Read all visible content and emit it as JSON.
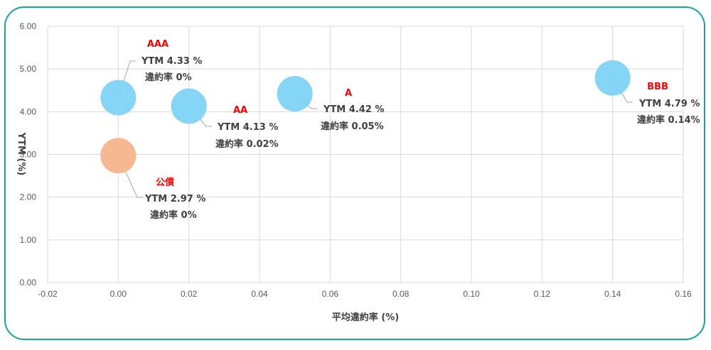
{
  "chart_data": {
    "type": "scatter",
    "xlabel": "平均違約率 (%)",
    "ylabel": "YTM (%)",
    "xlim": [
      -0.02,
      0.16
    ],
    "ylim": [
      0,
      6
    ],
    "x_ticks": [
      "-0.02",
      "0.00",
      "0.02",
      "0.04",
      "0.06",
      "0.08",
      "0.10",
      "0.12",
      "0.14",
      "0.16"
    ],
    "y_ticks": [
      "0.00",
      "1.00",
      "2.00",
      "3.00",
      "4.00",
      "5.00",
      "6.00"
    ],
    "grid": true,
    "points": [
      {
        "name": "AAA",
        "x": 0.0,
        "y": 4.33,
        "color": "#7dd3f5",
        "ytm_text": "YTM 4.33 %",
        "default_text": "違約率 0%"
      },
      {
        "name": "AA",
        "x": 0.02,
        "y": 4.13,
        "color": "#7dd3f5",
        "ytm_text": "YTM 4.13 %",
        "default_text": "違約率 0.02%"
      },
      {
        "name": "A",
        "x": 0.05,
        "y": 4.42,
        "color": "#7dd3f5",
        "ytm_text": "YTM 4.42 %",
        "default_text": "違約率 0.05%"
      },
      {
        "name": "BBB",
        "x": 0.14,
        "y": 4.79,
        "color": "#7dd3f5",
        "ytm_text": "YTM 4.79 %",
        "default_text": "違約率 0.14%"
      },
      {
        "name": "公債",
        "x": 0.0,
        "y": 2.97,
        "color": "#f5b48a",
        "ytm_text": "YTM 2.97 %",
        "default_text": "違約率 0%"
      }
    ],
    "colors": {
      "frame": "#17a39a",
      "grid": "#d9d9d9",
      "label_name": "#ff0000",
      "label_text": "#404040"
    }
  }
}
